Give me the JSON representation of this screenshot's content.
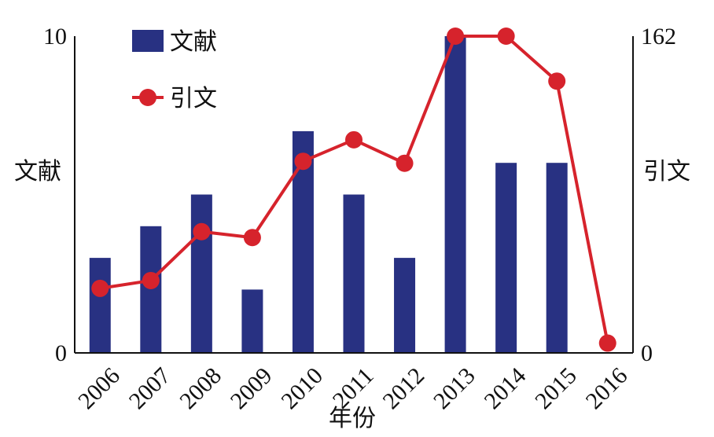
{
  "chart_data": {
    "type": "bar",
    "categories": [
      "2006",
      "2007",
      "2008",
      "2009",
      "2010",
      "2011",
      "2012",
      "2013",
      "2014",
      "2015",
      "2016"
    ],
    "series": [
      {
        "name": "文献",
        "type": "bar",
        "axis": "left",
        "values": [
          3,
          4,
          5,
          2,
          7,
          5,
          3,
          10,
          6,
          6,
          0
        ]
      },
      {
        "name": "引文",
        "type": "line",
        "axis": "right",
        "values": [
          33,
          37,
          62,
          59,
          98,
          109,
          97,
          162,
          162,
          139,
          5
        ]
      }
    ],
    "xlabel": "年份",
    "ylabel_left": "文献",
    "ylabel_right": "引文",
    "ylim_left": [
      0,
      10
    ],
    "ylim_right": [
      0,
      162
    ],
    "yticks_left": [
      "0",
      "10"
    ],
    "yticks_right": [
      "0",
      "162"
    ],
    "legend_placement": "top-left",
    "grid": false,
    "colors": {
      "bar": "#283182",
      "line": "#d6232c"
    }
  }
}
